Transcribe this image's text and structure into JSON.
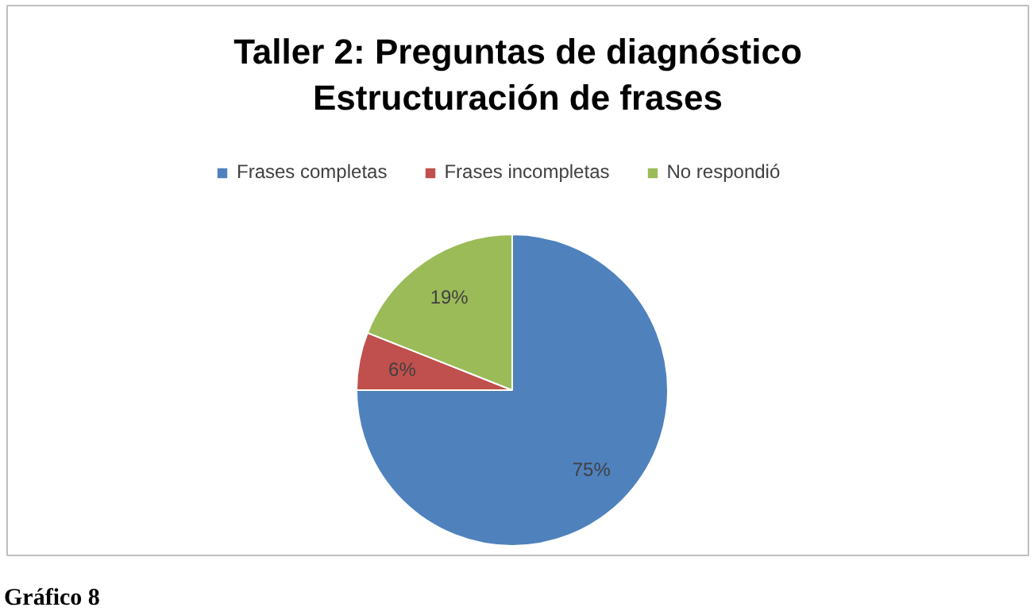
{
  "chart_data": {
    "type": "pie",
    "title": "Taller 2: Preguntas de diagnóstico\nEstructuración de frases",
    "categories": [
      "Frases completas",
      "Frases incompletas",
      "No respondió"
    ],
    "values": [
      75,
      6,
      19
    ],
    "colors": [
      "#4f81bd",
      "#c0504d",
      "#9bbb59"
    ],
    "value_labels": [
      "75%",
      "6%",
      "19%"
    ],
    "legend": "top",
    "annotations": [
      "Gráfico 8"
    ]
  }
}
